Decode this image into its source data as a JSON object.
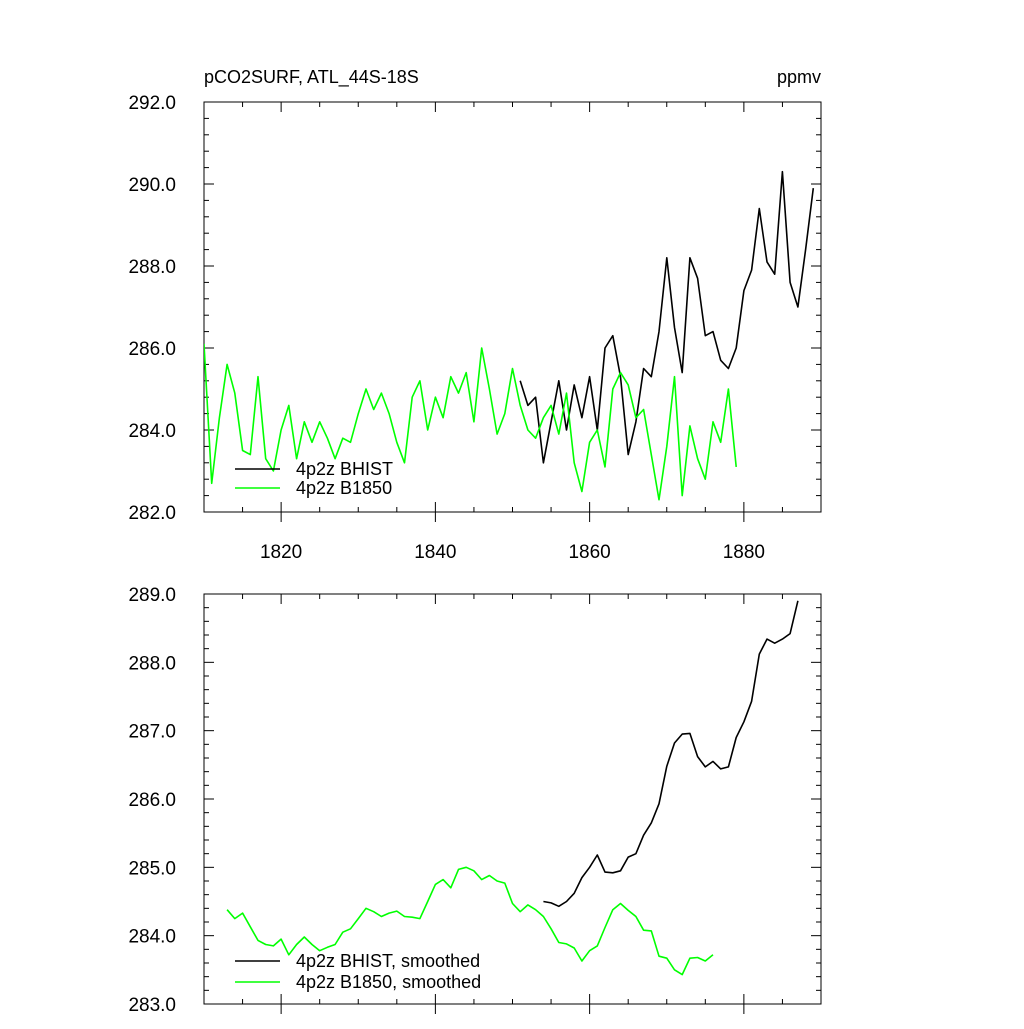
{
  "header": {
    "title": "pCO2SURF, ATL_44S-18S",
    "units": "ppmv"
  },
  "colors": {
    "bhist": "#000000",
    "b1850": "#00ff00",
    "axis": "#000000"
  },
  "chart_data": [
    {
      "type": "line",
      "panel": "top",
      "title": "pCO2SURF, ATL_44S-18S",
      "ylabel": "ppmv",
      "xlabel": "",
      "xlim": [
        1810,
        1890
      ],
      "ylim": [
        282,
        292
      ],
      "xticks": [
        1820,
        1840,
        1860,
        1880
      ],
      "yticks": [
        282,
        284,
        286,
        288,
        290,
        292
      ],
      "ytick_labels": [
        "282.0",
        "284.0",
        "286.0",
        "288.0",
        "290.0",
        "292.0"
      ],
      "legend_position": "bottom-left",
      "series": [
        {
          "name": "4p2z BHIST",
          "color": "#000000",
          "x": [
            1851,
            1852,
            1853,
            1854,
            1855,
            1856,
            1857,
            1858,
            1859,
            1860,
            1861,
            1862,
            1863,
            1864,
            1865,
            1866,
            1867,
            1868,
            1869,
            1870,
            1871,
            1872,
            1873,
            1874,
            1875,
            1876,
            1877,
            1878,
            1879,
            1880,
            1881,
            1882,
            1883,
            1884,
            1885,
            1886,
            1887,
            1888,
            1889
          ],
          "values": [
            285.2,
            284.6,
            284.8,
            283.2,
            284.2,
            285.2,
            284.0,
            285.1,
            284.3,
            285.3,
            284.0,
            286.0,
            286.3,
            285.3,
            283.4,
            284.2,
            285.5,
            285.3,
            286.4,
            288.2,
            286.5,
            285.4,
            288.2,
            287.7,
            286.3,
            286.4,
            285.7,
            285.5,
            286.0,
            287.4,
            287.9,
            289.4,
            288.1,
            287.8,
            290.3,
            287.6,
            287.0,
            288.4,
            289.9
          ]
        },
        {
          "name": "4p2z B1850",
          "color": "#00ff00",
          "x": [
            1810,
            1811,
            1812,
            1813,
            1814,
            1815,
            1816,
            1817,
            1818,
            1819,
            1820,
            1821,
            1822,
            1823,
            1824,
            1825,
            1826,
            1827,
            1828,
            1829,
            1830,
            1831,
            1832,
            1833,
            1834,
            1835,
            1836,
            1837,
            1838,
            1839,
            1840,
            1841,
            1842,
            1843,
            1844,
            1845,
            1846,
            1847,
            1848,
            1849,
            1850,
            1851,
            1852,
            1853,
            1854,
            1855,
            1856,
            1857,
            1858,
            1859,
            1860,
            1861,
            1862,
            1863,
            1864,
            1865,
            1866,
            1867,
            1868,
            1869,
            1870,
            1871,
            1872,
            1873,
            1874,
            1875,
            1876,
            1877,
            1878,
            1879
          ],
          "values": [
            286.1,
            282.7,
            284.3,
            285.6,
            284.9,
            283.5,
            283.4,
            285.3,
            283.3,
            283.0,
            284.0,
            284.6,
            283.3,
            284.2,
            283.7,
            284.2,
            283.8,
            283.3,
            283.8,
            283.7,
            284.4,
            285.0,
            284.5,
            284.9,
            284.4,
            283.7,
            283.2,
            284.8,
            285.2,
            284.0,
            284.8,
            284.3,
            285.3,
            284.9,
            285.4,
            284.2,
            286.0,
            285.0,
            283.9,
            284.4,
            285.5,
            284.6,
            284.0,
            283.8,
            284.3,
            284.6,
            283.9,
            284.9,
            283.2,
            282.5,
            283.7,
            284.0,
            283.1,
            285.0,
            285.4,
            285.1,
            284.3,
            284.5,
            283.4,
            282.3,
            283.6,
            285.3,
            282.4,
            284.1,
            283.3,
            282.8,
            284.2,
            283.7,
            285.0,
            283.1
          ]
        }
      ]
    },
    {
      "type": "line",
      "panel": "bottom",
      "title": "",
      "xlabel": "",
      "ylabel": "",
      "xlim": [
        1810,
        1890
      ],
      "ylim": [
        283,
        289
      ],
      "xticks": [
        1820,
        1840,
        1860,
        1880
      ],
      "yticks": [
        283,
        284,
        285,
        286,
        287,
        288,
        289
      ],
      "ytick_labels": [
        "283.0",
        "284.0",
        "285.0",
        "286.0",
        "287.0",
        "288.0",
        "289.0"
      ],
      "legend_position": "bottom-left",
      "series": [
        {
          "name": "4p2z BHIST, smoothed",
          "color": "#000000",
          "x": [
            1854,
            1855,
            1856,
            1857,
            1858,
            1859,
            1860,
            1861,
            1862,
            1863,
            1864,
            1865,
            1866,
            1867,
            1868,
            1869,
            1870,
            1871,
            1872,
            1873,
            1874,
            1875,
            1876,
            1877,
            1878,
            1879,
            1880,
            1881,
            1882,
            1883,
            1884,
            1885,
            1886,
            1887
          ],
          "values": [
            284.5,
            284.48,
            284.43,
            284.5,
            284.62,
            284.85,
            285.0,
            285.18,
            284.93,
            284.92,
            284.95,
            285.15,
            285.2,
            285.47,
            285.65,
            285.93,
            286.48,
            286.82,
            286.95,
            286.96,
            286.62,
            286.47,
            286.55,
            286.44,
            286.47,
            286.9,
            287.13,
            287.43,
            288.12,
            288.34,
            288.28,
            288.34,
            288.42,
            288.9
          ]
        },
        {
          "name": "4p2z B1850, smoothed",
          "color": "#00ff00",
          "x": [
            1813,
            1814,
            1815,
            1816,
            1817,
            1818,
            1819,
            1820,
            1821,
            1822,
            1823,
            1824,
            1825,
            1826,
            1827,
            1828,
            1829,
            1830,
            1831,
            1832,
            1833,
            1834,
            1835,
            1836,
            1837,
            1838,
            1839,
            1840,
            1841,
            1842,
            1843,
            1844,
            1845,
            1846,
            1847,
            1848,
            1849,
            1850,
            1851,
            1852,
            1853,
            1854,
            1855,
            1856,
            1857,
            1858,
            1859,
            1860,
            1861,
            1862,
            1863,
            1864,
            1865,
            1866,
            1867,
            1868,
            1869,
            1870,
            1871,
            1872,
            1873,
            1874,
            1875,
            1876
          ],
          "values": [
            284.38,
            284.25,
            284.33,
            284.13,
            283.93,
            283.87,
            283.85,
            283.95,
            283.72,
            283.87,
            283.98,
            283.87,
            283.78,
            283.83,
            283.87,
            284.05,
            284.1,
            284.25,
            284.4,
            284.35,
            284.28,
            284.33,
            284.36,
            284.28,
            284.27,
            284.25,
            284.5,
            284.75,
            284.82,
            284.7,
            284.97,
            285.0,
            284.95,
            284.82,
            284.88,
            284.8,
            284.77,
            284.47,
            284.35,
            284.45,
            284.38,
            284.28,
            284.1,
            283.9,
            283.88,
            283.82,
            283.63,
            283.78,
            283.85,
            284.12,
            284.38,
            284.47,
            284.37,
            284.28,
            284.08,
            284.07,
            283.7,
            283.67,
            283.5,
            283.43,
            283.67,
            283.68,
            283.63,
            283.72
          ]
        }
      ]
    }
  ]
}
